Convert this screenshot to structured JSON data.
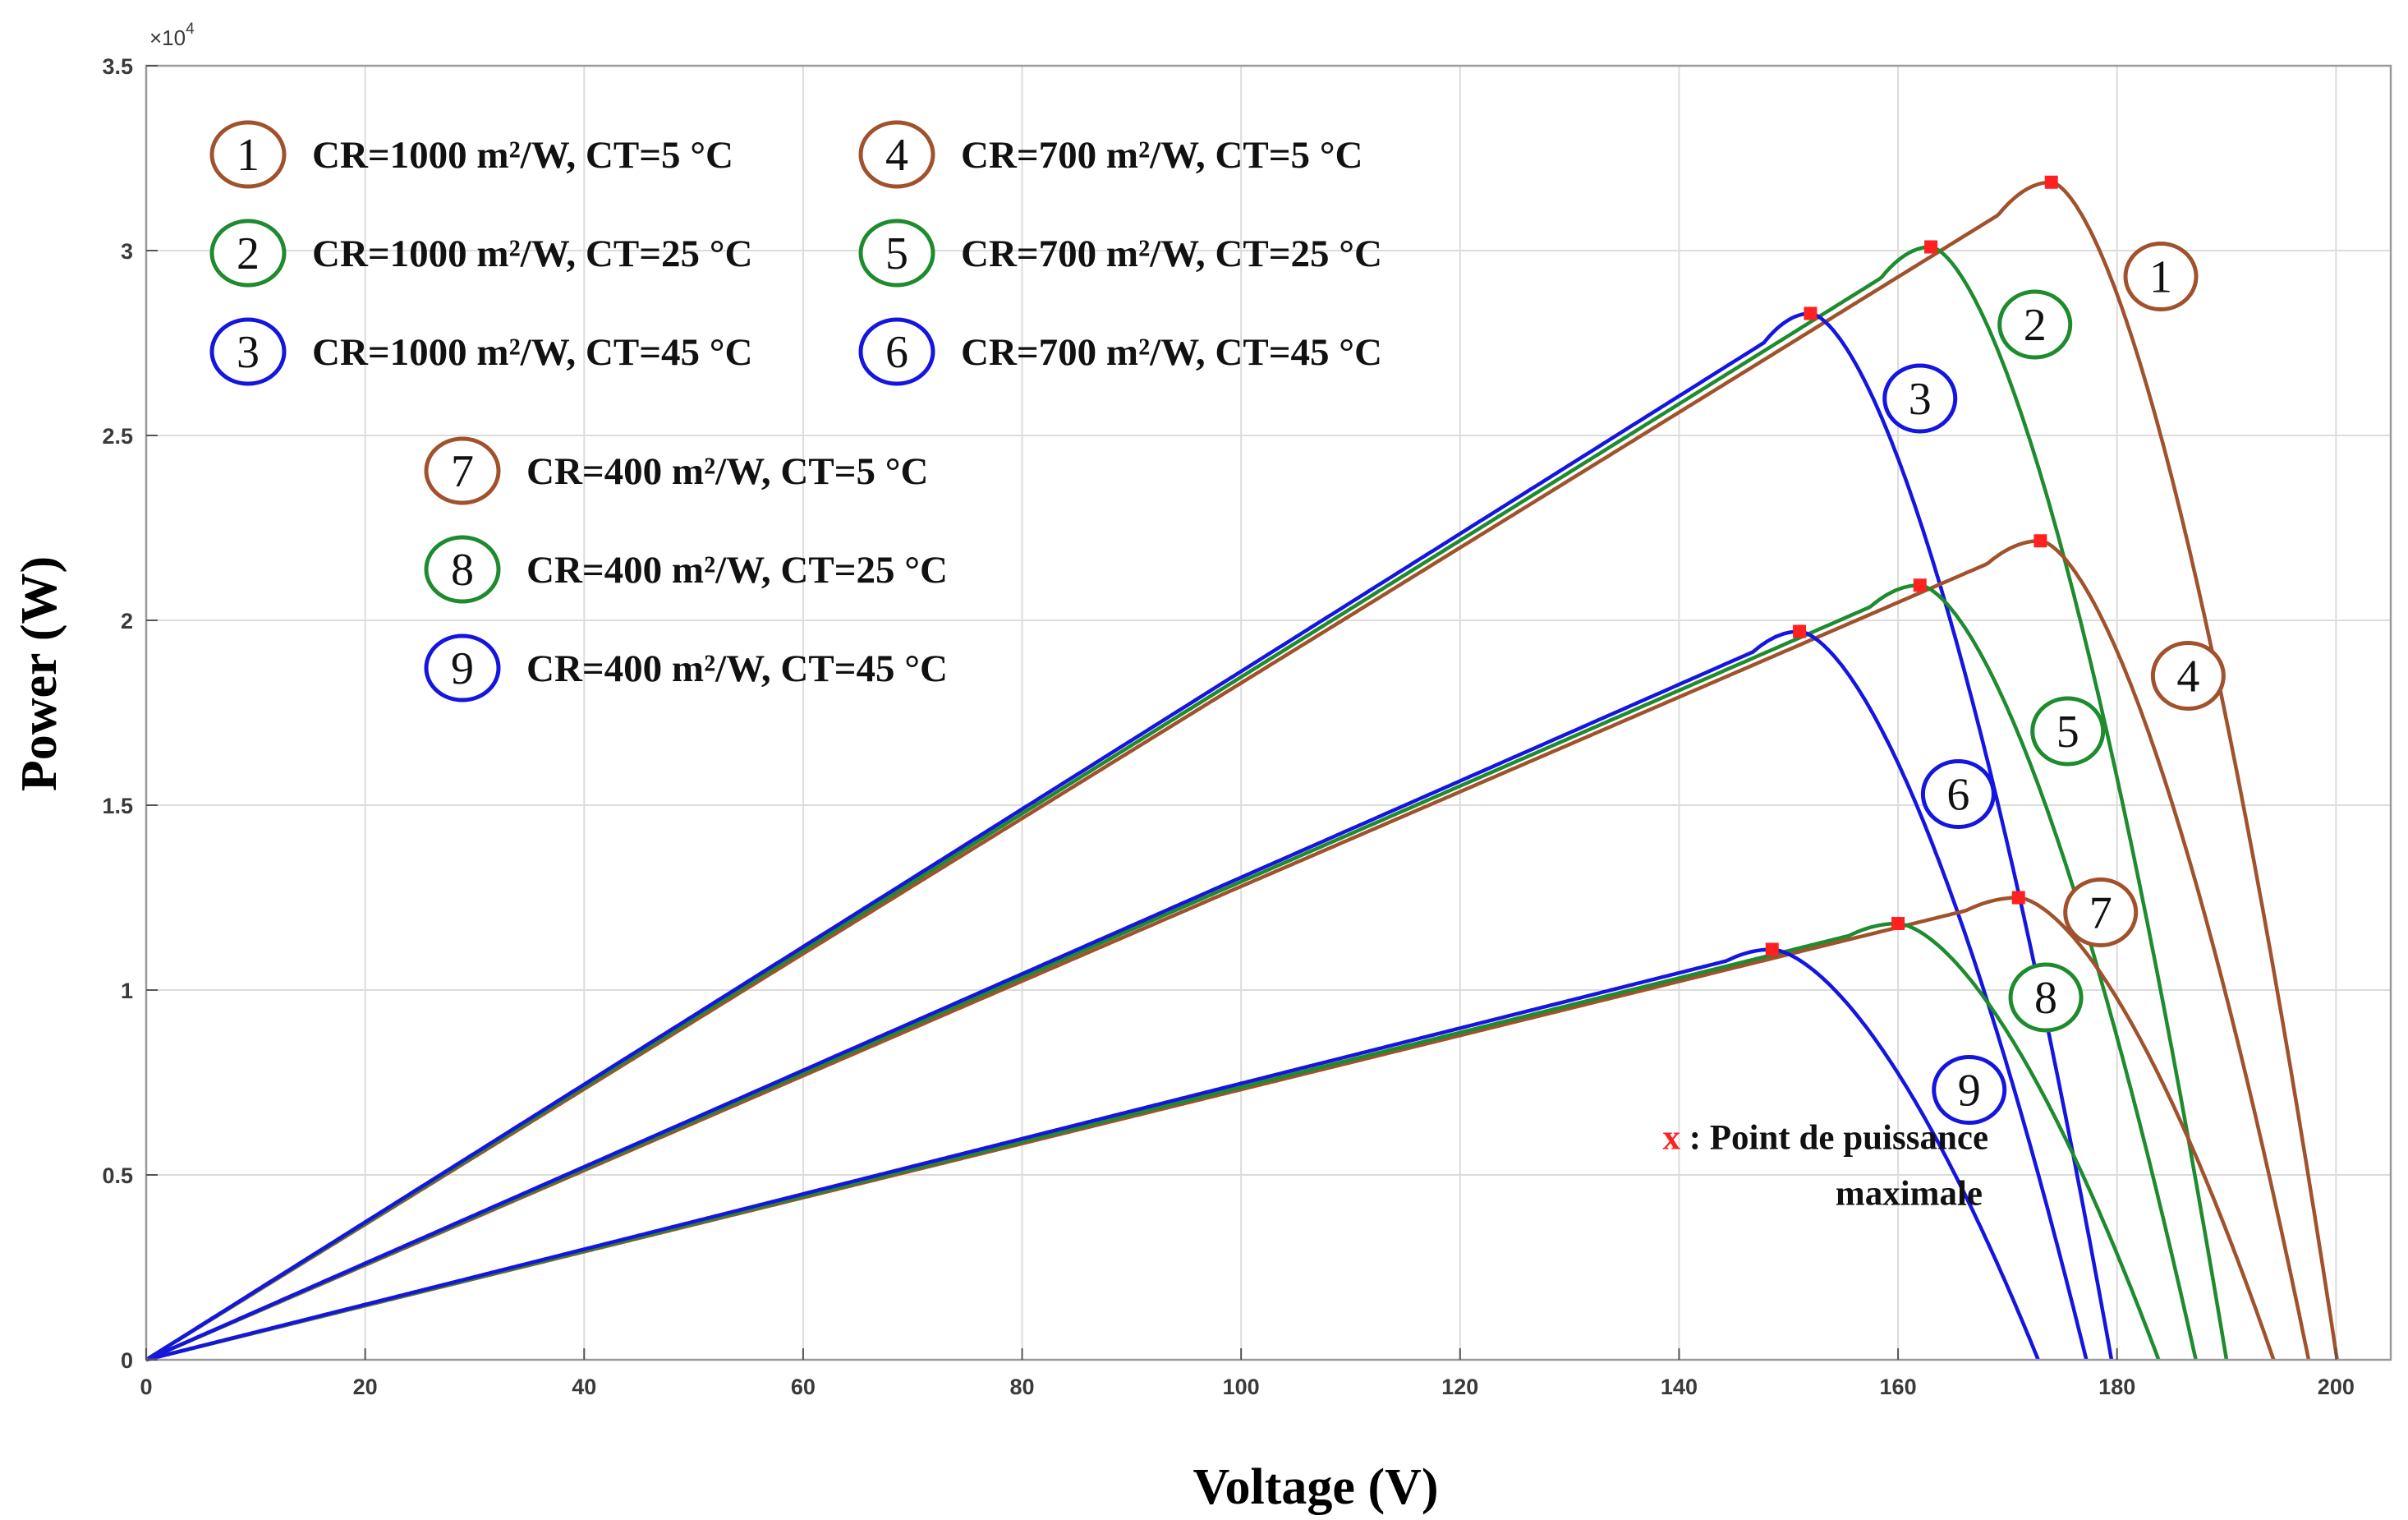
{
  "chart_data": {
    "type": "line",
    "title": "",
    "xlabel": "Voltage (V)",
    "ylabel": "Power (W)",
    "xlim": [
      0,
      205
    ],
    "ylim": [
      0,
      35000
    ],
    "y_multiplier_label": "×10",
    "y_multiplier_exp": "4",
    "y_tick_scale": 10000,
    "xticks": [
      0,
      20,
      40,
      60,
      80,
      100,
      120,
      140,
      160,
      180,
      200
    ],
    "yticks": [
      0,
      5000,
      10000,
      15000,
      20000,
      25000,
      30000,
      35000
    ],
    "ytick_labels": [
      "0",
      "0.5",
      "1",
      "1.5",
      "2",
      "2.5",
      "3",
      "3.5"
    ],
    "grid": true,
    "colors": {
      "brown": "#A0522D",
      "green": "#1E8B2E",
      "blue": "#1515E0",
      "mpp": "#FF2020"
    },
    "series": [
      {
        "id": 1,
        "name": "CR=1000 m²/W, CT=5 °C",
        "color": "#A0522D",
        "voc": 200.1,
        "vmp": 174,
        "pmp": 31850,
        "labelx": 184,
        "labely": 29300
      },
      {
        "id": 2,
        "name": "CR=1000 m²/W, CT=25 °C",
        "color": "#1E8B2E",
        "voc": 190,
        "vmp": 163,
        "pmp": 30100,
        "labelx": 172.5,
        "labely": 28000
      },
      {
        "id": 3,
        "name": "CR=1000 m²/W, CT=45 °C",
        "color": "#1515E0",
        "voc": 179.5,
        "vmp": 152,
        "pmp": 28300,
        "labelx": 162,
        "labely": 26000
      },
      {
        "id": 4,
        "name": "CR=700 m²/W, CT=5 °C",
        "color": "#A0522D",
        "voc": 197.5,
        "vmp": 173,
        "pmp": 22150,
        "labelx": 186.5,
        "labely": 18500
      },
      {
        "id": 5,
        "name": "CR=700 m²/W, CT=25 °C",
        "color": "#1E8B2E",
        "voc": 187.2,
        "vmp": 162,
        "pmp": 20950,
        "labelx": 175.5,
        "labely": 17000
      },
      {
        "id": 6,
        "name": "CR=700 m²/W, CT=45 °C",
        "color": "#1515E0",
        "voc": 177.2,
        "vmp": 151,
        "pmp": 19700,
        "labelx": 165.5,
        "labely": 15300
      },
      {
        "id": 7,
        "name": "CR=400 m²/W, CT=5 °C",
        "color": "#A0522D",
        "voc": 194.3,
        "vmp": 171,
        "pmp": 12500,
        "labelx": 178.5,
        "labely": 12100
      },
      {
        "id": 8,
        "name": "CR=400 m²/W, CT=25 °C",
        "color": "#1E8B2E",
        "voc": 183.8,
        "vmp": 160,
        "pmp": 11800,
        "labelx": 173.5,
        "labely": 9800
      },
      {
        "id": 9,
        "name": "CR=400 m²/W, CT=45 °C",
        "color": "#1515E0",
        "voc": 172.8,
        "vmp": 148.5,
        "pmp": 11100,
        "labelx": 166.5,
        "labely": 7300
      }
    ],
    "annotation": {
      "marker": "x",
      "line1": " : Point de puissance",
      "line2": "maximale",
      "x": 138.5,
      "y": 5700
    }
  }
}
